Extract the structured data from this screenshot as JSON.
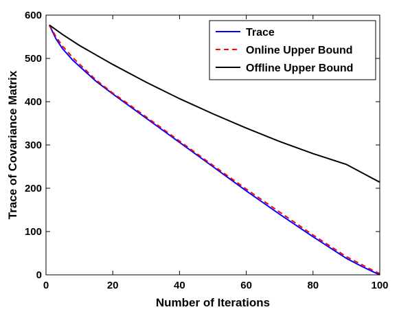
{
  "chart_data": {
    "type": "line",
    "title": "",
    "xlabel": "Number of Iterations",
    "ylabel": "Trace of Covariance Matrix",
    "xlim": [
      0,
      100
    ],
    "ylim": [
      0,
      600
    ],
    "xticks": [
      "0",
      "20",
      "40",
      "60",
      "80",
      "100"
    ],
    "yticks": [
      "0",
      "100",
      "200",
      "300",
      "400",
      "500",
      "600"
    ],
    "grid": false,
    "legend_position": "top-right",
    "series": [
      {
        "name": "Trace",
        "color": "#0000ff",
        "style": "solid",
        "x": [
          1,
          3,
          5,
          8,
          10,
          15,
          20,
          25,
          30,
          40,
          50,
          60,
          70,
          80,
          90,
          95,
          98,
          100
        ],
        "y": [
          577,
          545,
          522,
          496,
          482,
          447,
          418,
          390,
          362,
          306,
          250,
          194,
          140,
          88,
          38,
          18,
          7,
          0
        ]
      },
      {
        "name": "Online Upper Bound",
        "color": "#ff0000",
        "style": "dashed",
        "x": [
          1,
          3,
          5,
          8,
          10,
          15,
          20,
          25,
          30,
          40,
          50,
          60,
          70,
          80,
          90,
          95,
          98,
          100
        ],
        "y": [
          577,
          550,
          528,
          502,
          487,
          450,
          420,
          393,
          365,
          309,
          253,
          198,
          145,
          92,
          42,
          22,
          10,
          3
        ]
      },
      {
        "name": "Offline Upper Bound",
        "color": "#000000",
        "style": "solid",
        "x": [
          1,
          5,
          10,
          20,
          30,
          40,
          50,
          60,
          70,
          80,
          90,
          100
        ],
        "y": [
          577,
          555,
          530,
          486,
          445,
          407,
          372,
          339,
          308,
          280,
          255,
          214
        ]
      }
    ]
  }
}
